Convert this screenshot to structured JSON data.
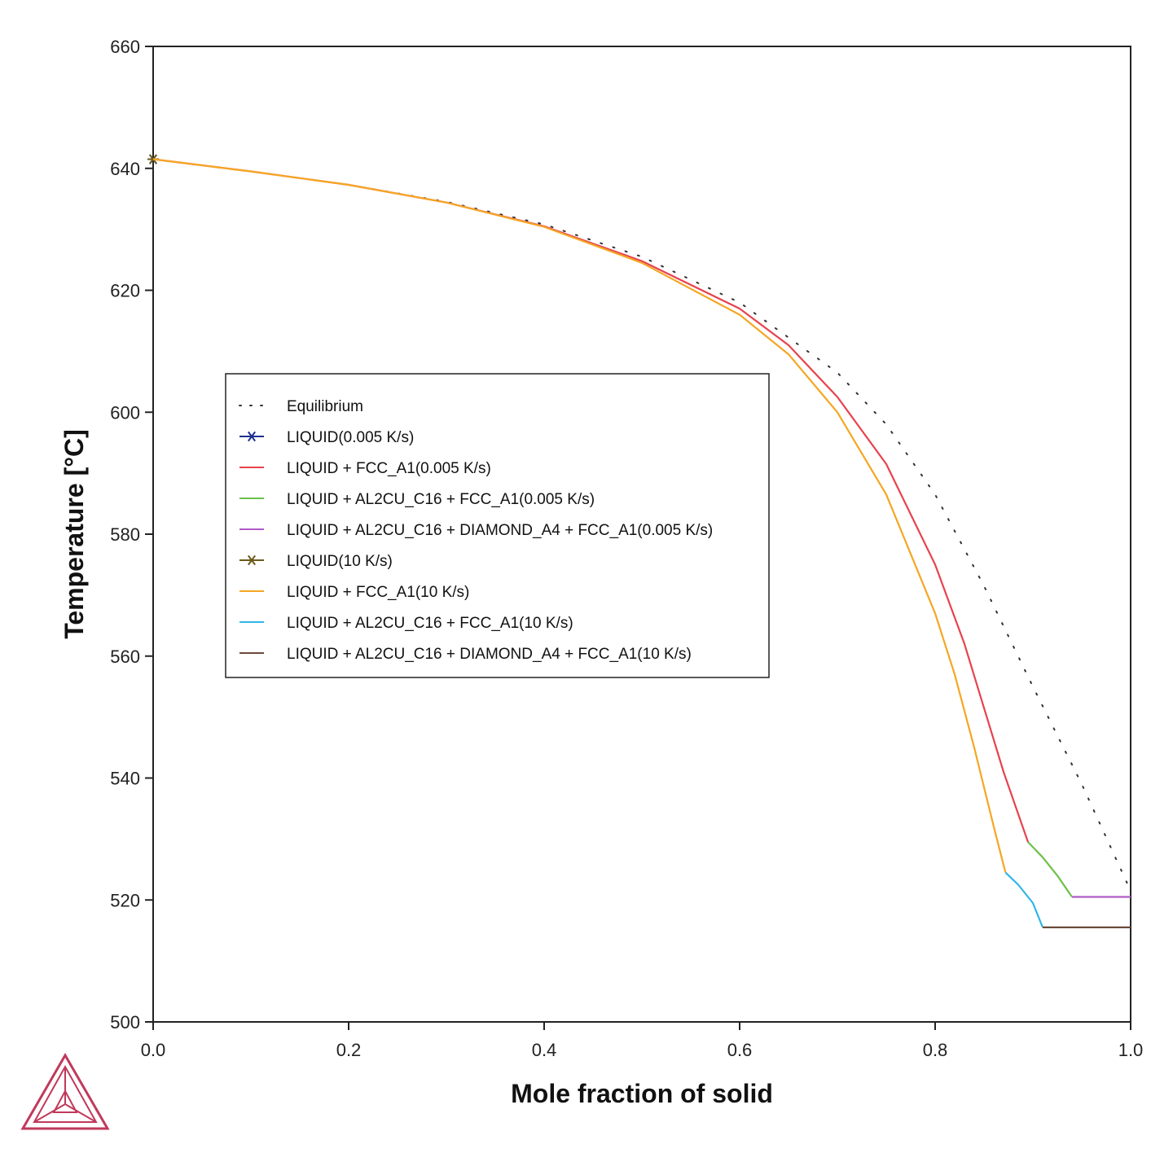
{
  "chart_data": {
    "type": "line",
    "title": "",
    "xlabel": "Mole fraction of solid",
    "ylabel": "Temperature [°C]",
    "xlim": [
      0,
      1
    ],
    "ylim": [
      500,
      660
    ],
    "x_ticks": [
      "0.0",
      "0.2",
      "0.4",
      "0.6",
      "0.8",
      "1.0"
    ],
    "y_ticks": [
      "500",
      "520",
      "540",
      "560",
      "580",
      "600",
      "620",
      "640",
      "660"
    ],
    "grid": false,
    "legend_position": "center-left",
    "series": [
      {
        "name": "Equilibrium",
        "color": "#333333",
        "style": "dotted",
        "x": [
          0,
          0.1,
          0.2,
          0.3,
          0.4,
          0.5,
          0.6,
          0.7,
          0.75,
          0.8,
          0.85,
          0.9,
          0.95,
          1.0
        ],
        "y": [
          641.5,
          639.5,
          637.3,
          634.5,
          630.8,
          625.5,
          618.0,
          606.5,
          598.0,
          586.5,
          571.5,
          555.0,
          539.0,
          521.5
        ]
      },
      {
        "name": "LIQUID(0.005 K/s)",
        "color": "#1f2f8f",
        "style": "marker",
        "x": [
          0
        ],
        "y": [
          641.5
        ]
      },
      {
        "name": "LIQUID + FCC_A1(0.005 K/s)",
        "color": "#e8424e",
        "style": "solid",
        "x": [
          0,
          0.1,
          0.2,
          0.3,
          0.4,
          0.5,
          0.6,
          0.65,
          0.7,
          0.75,
          0.8,
          0.83,
          0.85,
          0.87,
          0.895
        ],
        "y": [
          641.5,
          639.5,
          637.3,
          634.4,
          630.5,
          624.8,
          617.0,
          611.0,
          602.5,
          591.5,
          575.0,
          562.0,
          551.5,
          541.0,
          529.5
        ]
      },
      {
        "name": "LIQUID + AL2CU_C16 + FCC_A1(0.005 K/s)",
        "color": "#6cc04a",
        "style": "solid",
        "x": [
          0.895,
          0.91,
          0.925,
          0.94
        ],
        "y": [
          529.5,
          527.0,
          524.0,
          520.5
        ]
      },
      {
        "name": "LIQUID + AL2CU_C16 + DIAMOND_A4 + FCC_A1(0.005 K/s)",
        "color": "#b05bc6",
        "style": "solid",
        "x": [
          0.94,
          1.0
        ],
        "y": [
          520.5,
          520.5
        ]
      },
      {
        "name": "LIQUID(10 K/s)",
        "color": "#6b5a1a",
        "style": "marker",
        "x": [
          0
        ],
        "y": [
          641.5
        ]
      },
      {
        "name": "LIQUID + FCC_A1(10 K/s)",
        "color": "#f5a623",
        "style": "solid",
        "x": [
          0,
          0.1,
          0.2,
          0.3,
          0.4,
          0.5,
          0.6,
          0.65,
          0.7,
          0.75,
          0.8,
          0.82,
          0.84,
          0.86,
          0.872
        ],
        "y": [
          641.5,
          639.5,
          637.3,
          634.4,
          630.4,
          624.5,
          616.0,
          609.5,
          600.0,
          586.5,
          567.0,
          557.0,
          545.0,
          532.0,
          524.5
        ]
      },
      {
        "name": "LIQUID + AL2CU_C16 + FCC_A1(10 K/s)",
        "color": "#2fb6e8",
        "style": "solid",
        "x": [
          0.872,
          0.885,
          0.9,
          0.91
        ],
        "y": [
          524.5,
          522.5,
          519.5,
          515.5
        ]
      },
      {
        "name": "LIQUID + AL2CU_C16 + DIAMOND_A4 + FCC_A1(10 K/s)",
        "color": "#6b4a3a",
        "style": "solid",
        "x": [
          0.91,
          1.0
        ],
        "y": [
          515.5,
          515.5
        ]
      }
    ]
  },
  "logo": {
    "color": "#c0395a",
    "icon": "triangle-logo-icon"
  }
}
